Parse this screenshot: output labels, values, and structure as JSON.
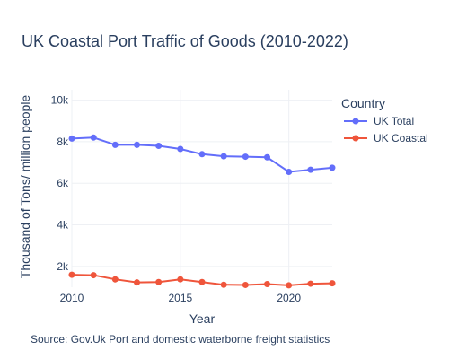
{
  "chart_data": {
    "type": "line",
    "title": "UK Coastal Port Traffic of Goods (2010-2022)",
    "xlabel": "Year",
    "ylabel": "Thousand of Tons/ million people",
    "x": [
      2010,
      2011,
      2012,
      2013,
      2014,
      2015,
      2016,
      2017,
      2018,
      2019,
      2020,
      2021,
      2022
    ],
    "xlim": [
      2010,
      2022
    ],
    "ylim": [
      1000,
      10500
    ],
    "x_ticks": [
      2010,
      2015,
      2020
    ],
    "y_ticks": [
      2000,
      4000,
      6000,
      8000,
      10000
    ],
    "x_tick_labels": [
      "2010",
      "2015",
      "2020"
    ],
    "y_tick_labels": [
      "2k",
      "4k",
      "6k",
      "8k",
      "10k"
    ],
    "grid": true,
    "legend": {
      "title": "Country",
      "placement": "top-right"
    },
    "series": [
      {
        "name": "UK Total",
        "color": "#636efa",
        "values": [
          8150,
          8200,
          7850,
          7850,
          7800,
          7650,
          7400,
          7300,
          7280,
          7250,
          6550,
          6650,
          6750
        ]
      },
      {
        "name": "UK Coastal",
        "color": "#ef553b",
        "values": [
          1600,
          1580,
          1380,
          1230,
          1250,
          1380,
          1250,
          1120,
          1110,
          1150,
          1090,
          1170,
          1190
        ]
      }
    ],
    "annotations": [
      "Source: Gov.Uk Port and domestic waterborne freight statistics"
    ]
  }
}
